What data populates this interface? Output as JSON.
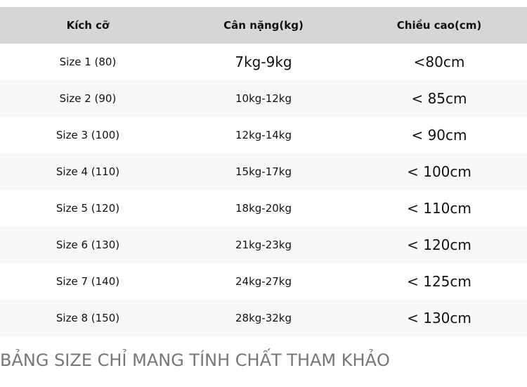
{
  "table": {
    "headers": [
      "Kích cỡ",
      "Cân nặng(kg)",
      "Chiều cao(cm)"
    ],
    "rows": [
      [
        "Size 1 (80)",
        "7kg-9kg",
        "<80cm"
      ],
      [
        "Size 2 (90)",
        "10kg-12kg",
        "< 85cm"
      ],
      [
        "Size 3 (100)",
        "12kg-14kg",
        "< 90cm"
      ],
      [
        "Size 4 (110)",
        "15kg-17kg",
        "< 100cm"
      ],
      [
        "Size 5 (120)",
        "18kg-20kg",
        "< 110cm"
      ],
      [
        "Size 6 (130)",
        "21kg-23kg",
        "< 120cm"
      ],
      [
        "Size 7 (140)",
        "24kg-27kg",
        "< 125cm"
      ],
      [
        "Size 8 (150)",
        "28kg-32kg",
        "< 130cm"
      ]
    ]
  },
  "note": "BẢNG SIZE CHỈ MANG TÍNH CHẤT THAM KHẢO"
}
